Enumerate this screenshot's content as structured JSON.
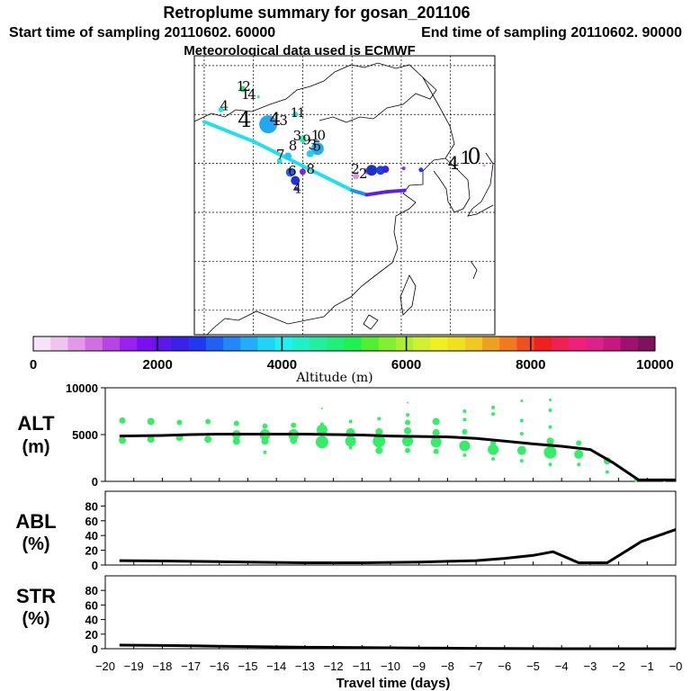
{
  "header": {
    "title": "Retroplume summary for gosan_201106",
    "start_label": "Start time of sampling 20110602. 60000",
    "end_label": "End time of sampling 20110602. 90000",
    "met_label": "Meteorological data used is ECMWF"
  },
  "colorbar": {
    "ticks": [
      "0",
      "2000",
      "4000",
      "6000",
      "8000",
      "10000"
    ],
    "label": "Altitude (m)",
    "colors": [
      "#f7e3f7",
      "#efc5ef",
      "#e29ae6",
      "#d070e0",
      "#b844e6",
      "#9a22ef",
      "#7a10ef",
      "#5a18ea",
      "#3a20e8",
      "#2038f0",
      "#2060f4",
      "#2088f8",
      "#20aef8",
      "#20d4f8",
      "#20f0f0",
      "#20f0c8",
      "#20f0a0",
      "#20f07a",
      "#20f050",
      "#50f030",
      "#80f030",
      "#aaf030",
      "#d0f030",
      "#f0f020",
      "#f0e020",
      "#f0c820",
      "#f0a020",
      "#f07a20",
      "#f05020",
      "#f02020",
      "#f02050",
      "#f0207a",
      "#e0208a",
      "#c81880",
      "#a01070",
      "#801060"
    ]
  },
  "map": {
    "grid_lon": [
      90,
      100,
      110,
      120,
      130,
      140
    ],
    "grid_lat": [
      10,
      20,
      30,
      40,
      50,
      60
    ],
    "trajectory": [
      {
        "lon": 90.0,
        "lat": 48.5
      },
      {
        "lon": 100.0,
        "lat": 44.5
      },
      {
        "lon": 105.0,
        "lat": 42.0
      },
      {
        "lon": 110.0,
        "lat": 39.5
      },
      {
        "lon": 115.0,
        "lat": 37.0
      },
      {
        "lon": 120.0,
        "lat": 34.5
      },
      {
        "lon": 123.0,
        "lat": 33.6
      },
      {
        "lon": 127.0,
        "lat": 34.2
      },
      {
        "lon": 130.7,
        "lat": 34.5
      }
    ],
    "labels": [
      {
        "text": "1",
        "lon": 97.4,
        "lat": 54.8,
        "size": 15,
        "color": "#000000"
      },
      {
        "text": "2",
        "lon": 98.6,
        "lat": 54.8,
        "size": 15,
        "color": "#000000"
      },
      {
        "text": "1",
        "lon": 98.4,
        "lat": 53.2,
        "size": 15,
        "color": "#000000"
      },
      {
        "text": "4",
        "lon": 99.7,
        "lat": 53.2,
        "size": 15,
        "color": "#000000"
      },
      {
        "text": "4",
        "lon": 94.1,
        "lat": 50.9,
        "size": 15,
        "color": "#000000"
      },
      {
        "text": "4",
        "lon": 98.2,
        "lat": 47.5,
        "size": 24,
        "color": "#000000"
      },
      {
        "text": "4",
        "lon": 104.4,
        "lat": 47.8,
        "size": 20,
        "color": "#000000"
      },
      {
        "text": "3",
        "lon": 106.1,
        "lat": 47.8,
        "size": 15,
        "color": "#000000"
      },
      {
        "text": "1",
        "lon": 108.3,
        "lat": 49.5,
        "size": 14,
        "color": "#000000"
      },
      {
        "text": "1",
        "lon": 109.7,
        "lat": 49.5,
        "size": 14,
        "color": "#000000"
      },
      {
        "text": "3",
        "lon": 108.9,
        "lat": 44.7,
        "size": 15,
        "color": "#000000"
      },
      {
        "text": "1",
        "lon": 112.6,
        "lat": 44.8,
        "size": 15,
        "color": "#000000"
      },
      {
        "text": "0",
        "lon": 113.8,
        "lat": 44.8,
        "size": 15,
        "color": "#000000"
      },
      {
        "text": "9",
        "lon": 110.8,
        "lat": 43.9,
        "size": 15,
        "color": "#000000"
      },
      {
        "text": "3",
        "lon": 112.0,
        "lat": 42.9,
        "size": 15,
        "color": "#000000"
      },
      {
        "text": "5",
        "lon": 112.9,
        "lat": 42.6,
        "size": 15,
        "color": "#000000"
      },
      {
        "text": "8",
        "lon": 108.0,
        "lat": 42.7,
        "size": 15,
        "color": "#000000"
      },
      {
        "text": "7",
        "lon": 105.5,
        "lat": 40.9,
        "size": 15,
        "color": "#000000"
      },
      {
        "text": "6",
        "lon": 107.9,
        "lat": 37.5,
        "size": 15,
        "color": "#000000"
      },
      {
        "text": "8",
        "lon": 111.6,
        "lat": 37.9,
        "size": 15,
        "color": "#000000"
      },
      {
        "text": "4",
        "lon": 108.9,
        "lat": 34.0,
        "size": 15,
        "color": "#000000"
      },
      {
        "text": "2",
        "lon": 120.7,
        "lat": 37.9,
        "size": 15,
        "color": "#000000"
      },
      {
        "text": "2",
        "lon": 122.3,
        "lat": 37.0,
        "size": 15,
        "color": "#000000"
      },
      {
        "text": "4",
        "lon": 140.6,
        "lat": 38.8,
        "size": 20,
        "color": "#000000"
      },
      {
        "text": "1",
        "lon": 143.1,
        "lat": 39.9,
        "size": 20,
        "color": "#000000"
      },
      {
        "text": "0",
        "lon": 144.8,
        "lat": 39.9,
        "size": 24,
        "color": "#000000"
      }
    ],
    "points": [
      {
        "lon": 97.8,
        "lat": 55.2,
        "r": 3.5,
        "color": "#20f070"
      },
      {
        "lon": 101.0,
        "lat": 53.6,
        "r": 1.5,
        "color": "#20f0a0"
      },
      {
        "lon": 93.4,
        "lat": 51.0,
        "r": 3,
        "color": "#20f0d0"
      },
      {
        "lon": 103.0,
        "lat": 48.0,
        "r": 10,
        "color": "#20a8f0"
      },
      {
        "lon": 108.5,
        "lat": 50.0,
        "r": 3,
        "color": "#20e0c0"
      },
      {
        "lon": 110.0,
        "lat": 45.0,
        "r": 4,
        "color": "#20f0b0"
      },
      {
        "lon": 113.0,
        "lat": 43.0,
        "r": 7,
        "color": "#20b0f0"
      },
      {
        "lon": 111.5,
        "lat": 42.0,
        "r": 4,
        "color": "#20d0f0"
      },
      {
        "lon": 107.0,
        "lat": 41.5,
        "r": 4,
        "color": "#20c8f0"
      },
      {
        "lon": 105.3,
        "lat": 40.5,
        "r": 3,
        "color": "#20e8d8"
      },
      {
        "lon": 107.5,
        "lat": 38.2,
        "r": 5,
        "color": "#2060f0"
      },
      {
        "lon": 108.5,
        "lat": 36.5,
        "r": 5,
        "color": "#2230d8"
      },
      {
        "lon": 110.0,
        "lat": 38.3,
        "r": 3.5,
        "color": "#8020e0"
      },
      {
        "lon": 108.7,
        "lat": 34.8,
        "r": 2,
        "color": "#6020e0"
      },
      {
        "lon": 120.8,
        "lat": 37.4,
        "r": 3.5,
        "color": "#e090e8"
      },
      {
        "lon": 123.0,
        "lat": 38.4,
        "r": 3.5,
        "color": "#d070e0"
      },
      {
        "lon": 124.0,
        "lat": 38.6,
        "r": 6,
        "color": "#1a30c8"
      },
      {
        "lon": 125.8,
        "lat": 38.6,
        "r": 5,
        "color": "#2040e0"
      },
      {
        "lon": 126.8,
        "lat": 38.8,
        "r": 4,
        "color": "#3a20e8"
      },
      {
        "lon": 134.0,
        "lat": 38.7,
        "r": 2.5,
        "color": "#2038f0"
      },
      {
        "lon": 130.5,
        "lat": 39.0,
        "r": 2,
        "color": "#9030e0"
      },
      {
        "lon": 146.8,
        "lat": 39.6,
        "r": 1.5,
        "color": "#e0a0e8"
      }
    ]
  },
  "chart_data": [
    {
      "type": "scatter",
      "panel": "ALT",
      "ylabel": "ALT",
      "yunit": "(m)",
      "xlim": [
        -20,
        0
      ],
      "ylim": [
        0,
        10000
      ],
      "yticks": [
        "0",
        "5000",
        "10000"
      ],
      "mean_line": {
        "x": [
          -19.5,
          -18,
          -17,
          -16,
          -15,
          -14,
          -13,
          -12,
          -11,
          -10,
          -9,
          -8,
          -7,
          -6,
          -5,
          -4,
          -3,
          -2.2,
          -1.3,
          0
        ],
        "y": [
          4850,
          4900,
          5000,
          5050,
          5050,
          5050,
          5050,
          5000,
          4950,
          4850,
          4800,
          4750,
          4600,
          4300,
          4000,
          3750,
          3400,
          2000,
          150,
          150
        ]
      },
      "points": [
        {
          "x": -19.4,
          "y": 6500,
          "r": 3.5
        },
        {
          "x": -19.4,
          "y": 4400,
          "r": 4
        },
        {
          "x": -18.4,
          "y": 6400,
          "r": 4
        },
        {
          "x": -18.4,
          "y": 4500,
          "r": 4
        },
        {
          "x": -17.4,
          "y": 6300,
          "r": 3
        },
        {
          "x": -17.4,
          "y": 4700,
          "r": 4
        },
        {
          "x": -16.4,
          "y": 6400,
          "r": 3
        },
        {
          "x": -16.4,
          "y": 4500,
          "r": 4
        },
        {
          "x": -15.4,
          "y": 6200,
          "r": 3
        },
        {
          "x": -15.4,
          "y": 5000,
          "r": 5
        },
        {
          "x": -15.4,
          "y": 4300,
          "r": 4
        },
        {
          "x": -14.4,
          "y": 5900,
          "r": 3
        },
        {
          "x": -14.4,
          "y": 5000,
          "r": 6
        },
        {
          "x": -14.4,
          "y": 4300,
          "r": 4
        },
        {
          "x": -14.4,
          "y": 3100,
          "r": 2
        },
        {
          "x": -13.4,
          "y": 6000,
          "r": 3
        },
        {
          "x": -13.4,
          "y": 5000,
          "r": 6
        },
        {
          "x": -13.4,
          "y": 4400,
          "r": 4
        },
        {
          "x": -12.4,
          "y": 6100,
          "r": 2
        },
        {
          "x": -12.4,
          "y": 5500,
          "r": 6
        },
        {
          "x": -12.4,
          "y": 4200,
          "r": 7
        },
        {
          "x": -12.4,
          "y": 7800,
          "r": 1
        },
        {
          "x": -11.4,
          "y": 6400,
          "r": 2
        },
        {
          "x": -11.4,
          "y": 5200,
          "r": 5
        },
        {
          "x": -11.4,
          "y": 4300,
          "r": 6
        },
        {
          "x": -11.4,
          "y": 3600,
          "r": 2
        },
        {
          "x": -10.4,
          "y": 6700,
          "r": 2
        },
        {
          "x": -10.4,
          "y": 5300,
          "r": 4
        },
        {
          "x": -10.4,
          "y": 4300,
          "r": 7
        },
        {
          "x": -10.4,
          "y": 3300,
          "r": 4
        },
        {
          "x": -9.4,
          "y": 7100,
          "r": 2
        },
        {
          "x": -9.4,
          "y": 6300,
          "r": 3
        },
        {
          "x": -9.4,
          "y": 5400,
          "r": 4
        },
        {
          "x": -9.4,
          "y": 4300,
          "r": 6
        },
        {
          "x": -9.4,
          "y": 3300,
          "r": 3
        },
        {
          "x": -9.4,
          "y": 8400,
          "r": 1
        },
        {
          "x": -8.4,
          "y": 6400,
          "r": 4
        },
        {
          "x": -8.4,
          "y": 5200,
          "r": 4
        },
        {
          "x": -8.4,
          "y": 4200,
          "r": 6
        },
        {
          "x": -8.4,
          "y": 3200,
          "r": 3
        },
        {
          "x": -7.4,
          "y": 7500,
          "r": 2
        },
        {
          "x": -7.4,
          "y": 6600,
          "r": 2
        },
        {
          "x": -7.4,
          "y": 5300,
          "r": 3
        },
        {
          "x": -7.4,
          "y": 3800,
          "r": 6
        },
        {
          "x": -7.4,
          "y": 2800,
          "r": 2
        },
        {
          "x": -6.4,
          "y": 7900,
          "r": 2
        },
        {
          "x": -6.4,
          "y": 7200,
          "r": 2
        },
        {
          "x": -6.4,
          "y": 4100,
          "r": 3
        },
        {
          "x": -6.4,
          "y": 3400,
          "r": 6
        },
        {
          "x": -6.4,
          "y": 2400,
          "r": 2
        },
        {
          "x": -5.4,
          "y": 8600,
          "r": 1.5
        },
        {
          "x": -5.4,
          "y": 6500,
          "r": 2
        },
        {
          "x": -5.4,
          "y": 5100,
          "r": 2
        },
        {
          "x": -5.4,
          "y": 3300,
          "r": 5
        },
        {
          "x": -5.4,
          "y": 2200,
          "r": 2
        },
        {
          "x": -4.4,
          "y": 8700,
          "r": 1.5
        },
        {
          "x": -4.4,
          "y": 7600,
          "r": 2
        },
        {
          "x": -4.4,
          "y": 5800,
          "r": 2
        },
        {
          "x": -4.4,
          "y": 4300,
          "r": 4
        },
        {
          "x": -4.4,
          "y": 3100,
          "r": 7
        },
        {
          "x": -4.4,
          "y": 1800,
          "r": 2
        },
        {
          "x": -3.4,
          "y": 4100,
          "r": 3
        },
        {
          "x": -3.4,
          "y": 2900,
          "r": 5
        },
        {
          "x": -3.4,
          "y": 1800,
          "r": 2
        },
        {
          "x": -2.4,
          "y": 2200,
          "r": 4
        },
        {
          "x": -2.4,
          "y": 1000,
          "r": 2
        },
        {
          "x": -1.4,
          "y": 150,
          "r": 2
        },
        {
          "x": -0.4,
          "y": 150,
          "r": 2
        }
      ]
    },
    {
      "type": "line",
      "panel": "ABL",
      "ylabel": "ABL",
      "yunit": "(%)",
      "xlim": [
        -20,
        0
      ],
      "ylim": [
        0,
        100
      ],
      "yticks": [
        "0",
        "20",
        "40",
        "60",
        "80"
      ],
      "x": [
        -19.5,
        -18,
        -17,
        -16,
        -15,
        -14,
        -13,
        -12,
        -11,
        -10,
        -9,
        -8,
        -7,
        -6,
        -5,
        -4.3,
        -3.4,
        -2.4,
        -1.2,
        0
      ],
      "y": [
        6,
        5.5,
        5,
        4.5,
        4,
        3.5,
        3,
        3,
        3,
        3.5,
        4,
        5,
        6,
        9,
        13,
        18,
        3,
        3,
        32,
        48
      ]
    },
    {
      "type": "line",
      "panel": "STR",
      "ylabel": "STR",
      "yunit": "(%)",
      "xlim": [
        -20,
        0
      ],
      "ylim": [
        0,
        100
      ],
      "yticks": [
        "0",
        "20",
        "40",
        "60",
        "80"
      ],
      "x": [
        -19.5,
        -18,
        -17,
        -16,
        -15,
        -14,
        -13,
        -12,
        -11,
        -10,
        -9,
        -8,
        -7,
        -6,
        -5,
        -4,
        -3,
        -2,
        -1,
        0
      ],
      "y": [
        5,
        4.5,
        4,
        3.5,
        3,
        2.5,
        2,
        1.8,
        1.5,
        1.2,
        1,
        0.8,
        0.5,
        0.2,
        0.1,
        0,
        0,
        0,
        0,
        0
      ]
    }
  ],
  "xaxis": {
    "ticks": [
      "−20",
      "−19",
      "−18",
      "−17",
      "−16",
      "−15",
      "−14",
      "−13",
      "−12",
      "−11",
      "−10",
      "−9",
      "−8",
      "−7",
      "−6",
      "−5",
      "−4",
      "−3",
      "−2",
      "−1",
      "−0"
    ],
    "label": "Travel time (days)"
  }
}
